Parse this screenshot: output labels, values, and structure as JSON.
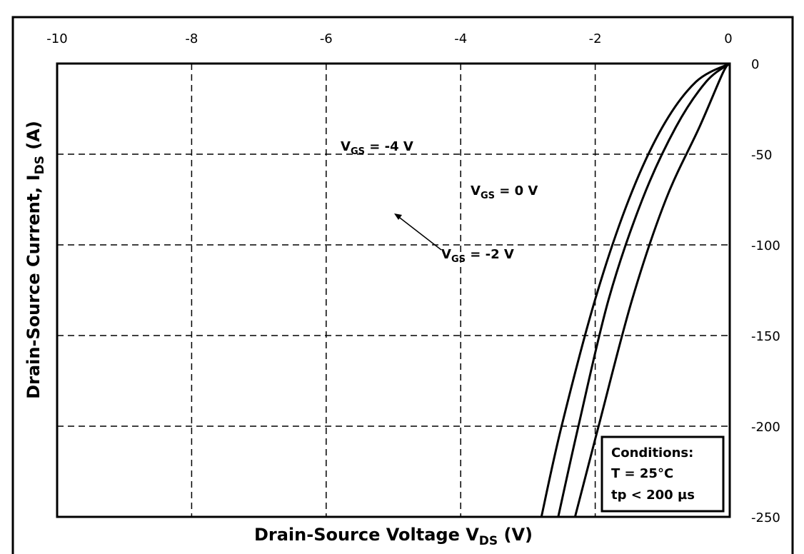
{
  "chart_data": {
    "type": "line",
    "xlabel": "Drain-Source Voltage VDS (V)",
    "ylabel": "Drain-Source Current, IDS (A)",
    "xlabel_main": "Drain-Source Voltage V",
    "xlabel_sub": "DS",
    "xlabel_unit": " (V)",
    "ylabel_main": "Drain-Source Current, I",
    "ylabel_sub": "DS",
    "ylabel_unit": " (A)",
    "xlim": [
      -10,
      0
    ],
    "ylim": [
      -250,
      0
    ],
    "x_ticks": [
      -10,
      -8,
      -6,
      -4,
      -2,
      0
    ],
    "x_tick_labels": [
      "-10",
      "-8",
      "-6",
      "-4",
      "-2",
      "0"
    ],
    "y_ticks": [
      0,
      -50,
      -100,
      -150,
      -200,
      -250
    ],
    "y_tick_labels": [
      "0",
      "-50",
      "-100",
      "-150",
      "-200",
      "-250"
    ],
    "grid": true,
    "grid_style": "dashed",
    "series": [
      {
        "name": "VGS = -4 V",
        "label_main": "V",
        "label_sub": "GS",
        "label_value": " = -4 V",
        "x": [
          -2.8,
          -2.5,
          -2.0,
          -1.5,
          -1.0,
          -0.5,
          0
        ],
        "y": [
          -250,
          -200,
          -130,
          -75,
          -35,
          -10,
          0
        ]
      }
    ],
    "legend": {
      "title": "Conditions:",
      "lines": [
        "T = 25°C",
        "tp < 200 µs"
      ],
      "placement": "bottom-right"
    }
  }
}
